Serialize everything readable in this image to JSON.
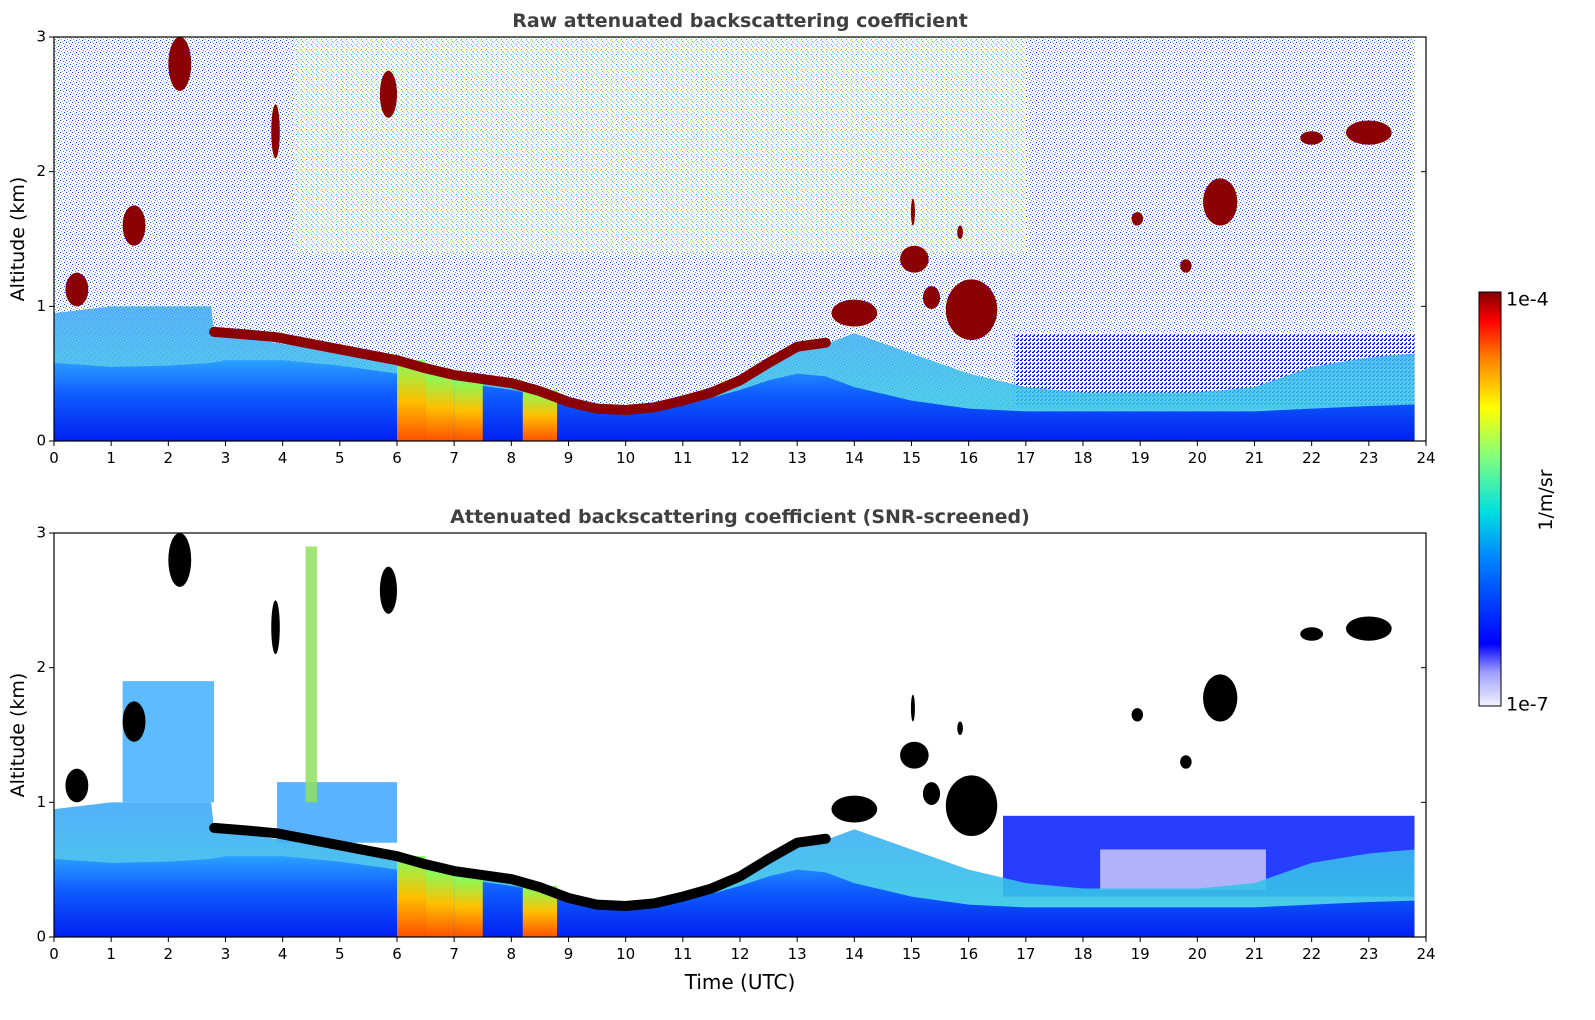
{
  "chart_data": [
    {
      "type": "heatmap",
      "title": "Raw attenuated backscattering coefficient",
      "xlabel": "",
      "ylabel": "Altitude (km)",
      "xlim": [
        0,
        24
      ],
      "ylim": [
        0,
        3
      ],
      "xticks": [
        0,
        1,
        2,
        3,
        4,
        5,
        6,
        7,
        8,
        9,
        10,
        11,
        12,
        13,
        14,
        15,
        16,
        17,
        18,
        19,
        20,
        21,
        22,
        23,
        24
      ],
      "yticks": [
        0,
        1,
        2,
        3
      ],
      "data_extent_hours": [
        0,
        23.8
      ],
      "boundary_layer_top_km": {
        "x": [
          0,
          1,
          2,
          2.75,
          3,
          4,
          5,
          6,
          7,
          8,
          8.5,
          9,
          9.5,
          10,
          10.5,
          11,
          11.5,
          12,
          12.5,
          13,
          13.5,
          14,
          15,
          16,
          17,
          18,
          19,
          20,
          21,
          22,
          23,
          23.8
        ],
        "y": [
          0.58,
          0.55,
          0.56,
          0.58,
          0.6,
          0.6,
          0.56,
          0.5,
          0.44,
          0.38,
          0.34,
          0.3,
          0.26,
          0.24,
          0.25,
          0.28,
          0.32,
          0.38,
          0.45,
          0.5,
          0.48,
          0.4,
          0.3,
          0.24,
          0.22,
          0.22,
          0.22,
          0.22,
          0.22,
          0.24,
          0.26,
          0.27
        ]
      },
      "aerosol_top_km": {
        "x": [
          0,
          1,
          2,
          2.75,
          2.8,
          4,
          5,
          6,
          7,
          8,
          8.5,
          9,
          9.5,
          10,
          11,
          12,
          12.5,
          13,
          13.5,
          14,
          15,
          16,
          17,
          18,
          19,
          20,
          21,
          22,
          23,
          23.8
        ],
        "y": [
          0.95,
          1.0,
          1.0,
          1.0,
          0.8,
          0.72,
          0.66,
          0.6,
          0.52,
          0.45,
          0.4,
          0.3,
          0.26,
          0.25,
          0.3,
          0.42,
          0.55,
          0.7,
          0.72,
          0.8,
          0.65,
          0.5,
          0.4,
          0.36,
          0.36,
          0.36,
          0.4,
          0.55,
          0.62,
          0.65
        ]
      },
      "cloud_layer": {
        "x": [
          2.8,
          3.4,
          3.9,
          5.5,
          6,
          6.5,
          7,
          7.5,
          8,
          8.5,
          9,
          9.5,
          10,
          10.5,
          11,
          11.5,
          12,
          12.5,
          13,
          13.5
        ],
        "y": [
          0.81,
          0.79,
          0.77,
          0.64,
          0.6,
          0.54,
          0.49,
          0.46,
          0.43,
          0.37,
          0.29,
          0.24,
          0.23,
          0.25,
          0.3,
          0.36,
          0.45,
          0.58,
          0.7,
          0.73
        ]
      },
      "cloud_patches": [
        {
          "t0": 0.2,
          "t1": 0.6,
          "z0": 1.0,
          "z1": 1.25
        },
        {
          "t0": 1.2,
          "t1": 1.6,
          "z0": 1.45,
          "z1": 1.75
        },
        {
          "t0": 2.0,
          "t1": 2.4,
          "z0": 2.6,
          "z1": 3.0
        },
        {
          "t0": 3.8,
          "t1": 3.95,
          "z0": 2.1,
          "z1": 2.5
        },
        {
          "t0": 5.7,
          "t1": 6.0,
          "z0": 2.4,
          "z1": 2.75
        },
        {
          "t0": 13.6,
          "t1": 14.4,
          "z0": 0.85,
          "z1": 1.05
        },
        {
          "t0": 14.8,
          "t1": 15.3,
          "z0": 1.25,
          "z1": 1.45
        },
        {
          "t0": 15.0,
          "t1": 15.05,
          "z0": 1.6,
          "z1": 1.8
        },
        {
          "t0": 15.2,
          "t1": 15.5,
          "z0": 0.98,
          "z1": 1.15
        },
        {
          "t0": 15.6,
          "t1": 16.5,
          "z0": 0.75,
          "z1": 1.2
        },
        {
          "t0": 15.8,
          "t1": 15.9,
          "z0": 1.5,
          "z1": 1.6
        },
        {
          "t0": 18.85,
          "t1": 19.05,
          "z0": 1.6,
          "z1": 1.7
        },
        {
          "t0": 19.7,
          "t1": 19.9,
          "z0": 1.25,
          "z1": 1.35
        },
        {
          "t0": 20.1,
          "t1": 20.7,
          "z0": 1.6,
          "z1": 1.95
        },
        {
          "t0": 21.8,
          "t1": 22.2,
          "z0": 2.2,
          "z1": 2.3
        },
        {
          "t0": 22.6,
          "t1": 23.4,
          "z0": 2.2,
          "z1": 2.38
        }
      ],
      "plume_columns": [
        {
          "t0": 6.0,
          "t1": 6.5,
          "z1": 0.6
        },
        {
          "t0": 6.5,
          "t1": 7.0,
          "z1": 0.5
        },
        {
          "t0": 7.0,
          "t1": 7.5,
          "z1": 0.45
        },
        {
          "t0": 8.2,
          "t1": 8.8,
          "z1": 0.38
        }
      ]
    },
    {
      "type": "heatmap",
      "title": "Attenuated backscattering coefficient (SNR-screened)",
      "xlabel": "Time (UTC)",
      "ylabel": "Altitude (km)",
      "xlim": [
        0,
        24
      ],
      "ylim": [
        0,
        3
      ],
      "xticks": [
        0,
        1,
        2,
        3,
        4,
        5,
        6,
        7,
        8,
        9,
        10,
        11,
        12,
        13,
        14,
        15,
        16,
        17,
        18,
        19,
        20,
        21,
        22,
        23,
        24
      ],
      "yticks": [
        0,
        1,
        2,
        3
      ],
      "screened": true
    }
  ],
  "colorbar": {
    "label": "1/m/sr",
    "max_label": "1e-4",
    "min_label": "1e-7",
    "scale": "log",
    "range": [
      1e-07,
      0.0001
    ],
    "colormap": "jet"
  },
  "colors": {
    "clear_air": "#ffffff",
    "cloud_raw": "#8b0000",
    "cloud_screened": "#000000",
    "axis": "#000000",
    "title_text": "#404040"
  }
}
